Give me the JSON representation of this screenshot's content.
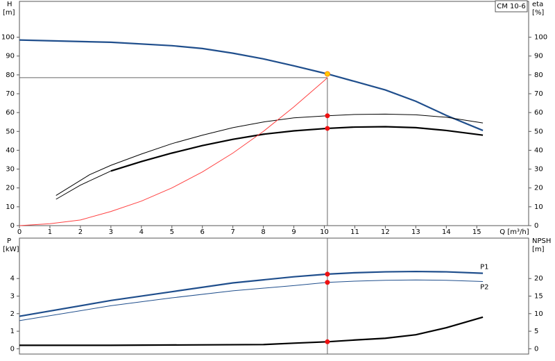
{
  "chart_data": [
    {
      "type": "line",
      "title": "CM 10-6",
      "y_label": "H",
      "y_unit": "[m]",
      "y2_label": "eta",
      "y2_unit": "[%]",
      "x_label": "Q [m³/h]",
      "xlim": [
        0,
        16.7
      ],
      "xticks": [
        0,
        1,
        2,
        3,
        4,
        5,
        6,
        7,
        8,
        9,
        10,
        11,
        12,
        13,
        14,
        15
      ],
      "ylim": [
        0,
        119
      ],
      "yticks": [
        0,
        10,
        20,
        30,
        40,
        50,
        60,
        70,
        80,
        90,
        100
      ],
      "y2lim": [
        0,
        119
      ],
      "y2ticks": [
        0,
        10,
        20,
        30,
        40,
        50,
        60,
        70,
        80,
        90,
        100
      ],
      "reference_lines": {
        "x": 10.1,
        "y": 78.5,
        "color": "#666666"
      },
      "series": [
        {
          "color": "#1f4e8c",
          "thick": true,
          "x": [
            0,
            3,
            5,
            6,
            7,
            8,
            9,
            10.1,
            11,
            12,
            13,
            14,
            15.2
          ],
          "values": [
            98.5,
            97.3,
            95.5,
            94,
            91.5,
            88.5,
            84.8,
            80.5,
            76.5,
            72,
            66,
            58.5,
            50.5
          ]
        },
        {
          "color": "#000000",
          "thick": false,
          "axis": "y2",
          "x": [
            1.2,
            2.3,
            3,
            4,
            5,
            6,
            7,
            8,
            9,
            10.1,
            11,
            12,
            13,
            14,
            15.2
          ],
          "values": [
            16,
            27,
            32,
            38,
            43.5,
            48,
            52,
            55,
            57.2,
            58.3,
            59,
            59.2,
            58.8,
            57.5,
            54.5
          ]
        },
        {
          "color": "#000000",
          "thick": false,
          "axis": "y2",
          "x": [
            1.2,
            2,
            3
          ],
          "values": [
            14,
            21.5,
            29
          ]
        },
        {
          "color": "#000000",
          "thick": true,
          "axis": "y2",
          "x": [
            3,
            4,
            5,
            6,
            7,
            8,
            9,
            10.1,
            11,
            12,
            13,
            14,
            15.2
          ],
          "values": [
            29,
            34,
            38.5,
            42.5,
            45.8,
            48.5,
            50.3,
            51.6,
            52.3,
            52.5,
            52,
            50.5,
            48
          ]
        },
        {
          "color": "#ff4040",
          "thick": false,
          "x": [
            0,
            1,
            2,
            3,
            4,
            5,
            6,
            7,
            8,
            9,
            10,
            10.1
          ],
          "values": [
            0,
            1,
            3,
            7.5,
            13,
            20,
            28.5,
            38.5,
            50,
            63,
            77,
            78.5
          ]
        }
      ],
      "points": [
        {
          "x": 10.1,
          "y": 80.5,
          "color": "#ffcc00"
        },
        {
          "x": 10.1,
          "y": 58.3,
          "color": "#ee1111"
        },
        {
          "x": 10.1,
          "y": 51.6,
          "color": "#ee1111"
        }
      ]
    },
    {
      "type": "line",
      "y_label": "P",
      "y_unit": "[kW]",
      "y2_label": "NPSH",
      "y2_unit": "[m]",
      "xlim": [
        0,
        16.7
      ],
      "ylim": [
        -0.3,
        6.3
      ],
      "yticks": [
        0,
        1,
        2,
        3,
        4
      ],
      "y2lim": [
        -1.5,
        31.5
      ],
      "y2ticks": [
        0,
        5,
        10,
        15,
        20
      ],
      "reference_x": 10.1,
      "reference_color": "#666666",
      "series": [
        {
          "name": "P1",
          "color": "#1f4e8c",
          "thick": true,
          "x": [
            0,
            3,
            5,
            7,
            9,
            10.1,
            11,
            12,
            13,
            14,
            15.2
          ],
          "values": [
            1.85,
            2.75,
            3.25,
            3.75,
            4.1,
            4.25,
            4.33,
            4.38,
            4.4,
            4.38,
            4.3
          ]
        },
        {
          "name": "P2",
          "color": "#1f4e8c",
          "thick": false,
          "x": [
            0,
            3,
            5,
            7,
            9,
            10.1,
            11,
            12,
            13,
            14,
            15.2
          ],
          "values": [
            1.6,
            2.45,
            2.9,
            3.3,
            3.6,
            3.78,
            3.85,
            3.9,
            3.92,
            3.9,
            3.83
          ]
        },
        {
          "color": "#000000",
          "thick": true,
          "axis": "y2",
          "x": [
            0,
            3,
            8,
            9,
            10.1,
            11,
            12,
            13,
            14,
            15.2
          ],
          "values": [
            1,
            1,
            1.2,
            1.6,
            2,
            2.5,
            3,
            4,
            6,
            9
          ]
        }
      ],
      "points": [
        {
          "x": 10.1,
          "y": 4.25,
          "color": "#ee1111"
        },
        {
          "x": 10.1,
          "y": 3.78,
          "color": "#ee1111"
        },
        {
          "x": 10.1,
          "y": 2,
          "color": "#ee1111",
          "axis": "y2"
        }
      ]
    }
  ]
}
